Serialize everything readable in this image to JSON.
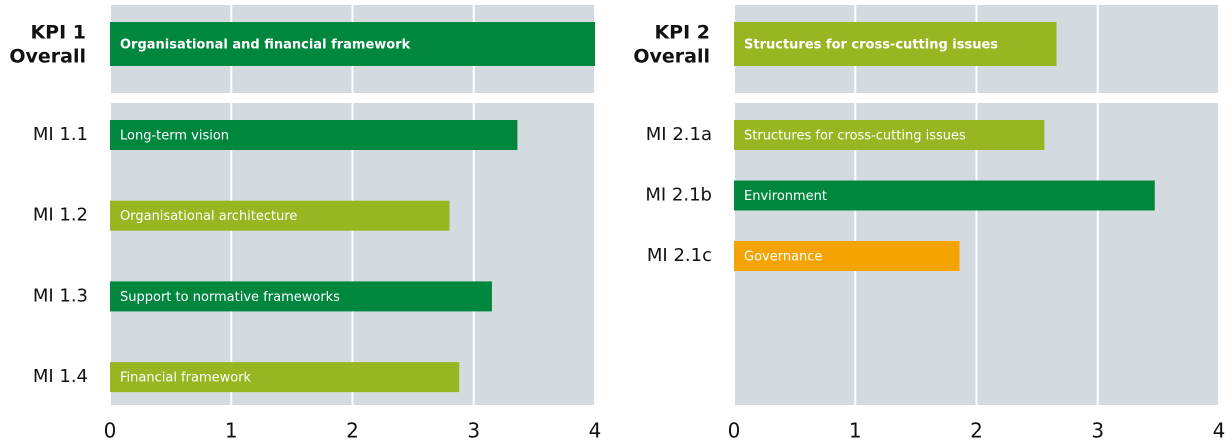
{
  "chart_data": [
    {
      "type": "bar",
      "overall": {
        "label_lines": [
          "KPI 1",
          "Overall"
        ],
        "name": "Organisational and financial framework",
        "value": 4,
        "color": "#00873e"
      },
      "categories": [
        "MI 1.1",
        "MI 1.2",
        "MI 1.3",
        "MI 1.4"
      ],
      "bar_labels": [
        "Long-term vision",
        "Organisational architecture",
        "Support to normative frameworks",
        "Financial framework"
      ],
      "values": [
        3.36,
        2.8,
        3.15,
        2.88
      ],
      "colors": [
        "#00873e",
        "#97b621",
        "#00873e",
        "#97b621"
      ],
      "xlim": [
        0,
        4
      ],
      "xticks": [
        0,
        1,
        2,
        3,
        4
      ],
      "grid": true
    },
    {
      "type": "bar",
      "overall": {
        "label_lines": [
          "KPI 2",
          "Overall"
        ],
        "name": "Structures for cross-cutting issues",
        "value": 2.66,
        "color": "#97b621"
      },
      "categories": [
        "MI 2.1a",
        "MI 2.1b",
        "MI 2.1c"
      ],
      "bar_labels": [
        "Structures for cross-cutting issues",
        "Environment",
        "Governance"
      ],
      "values": [
        2.56,
        3.47,
        1.86
      ],
      "colors": [
        "#97b621",
        "#00873e",
        "#f4a300"
      ],
      "xlim": [
        0,
        4
      ],
      "xticks": [
        0,
        1,
        2,
        3,
        4
      ],
      "grid": true
    }
  ]
}
